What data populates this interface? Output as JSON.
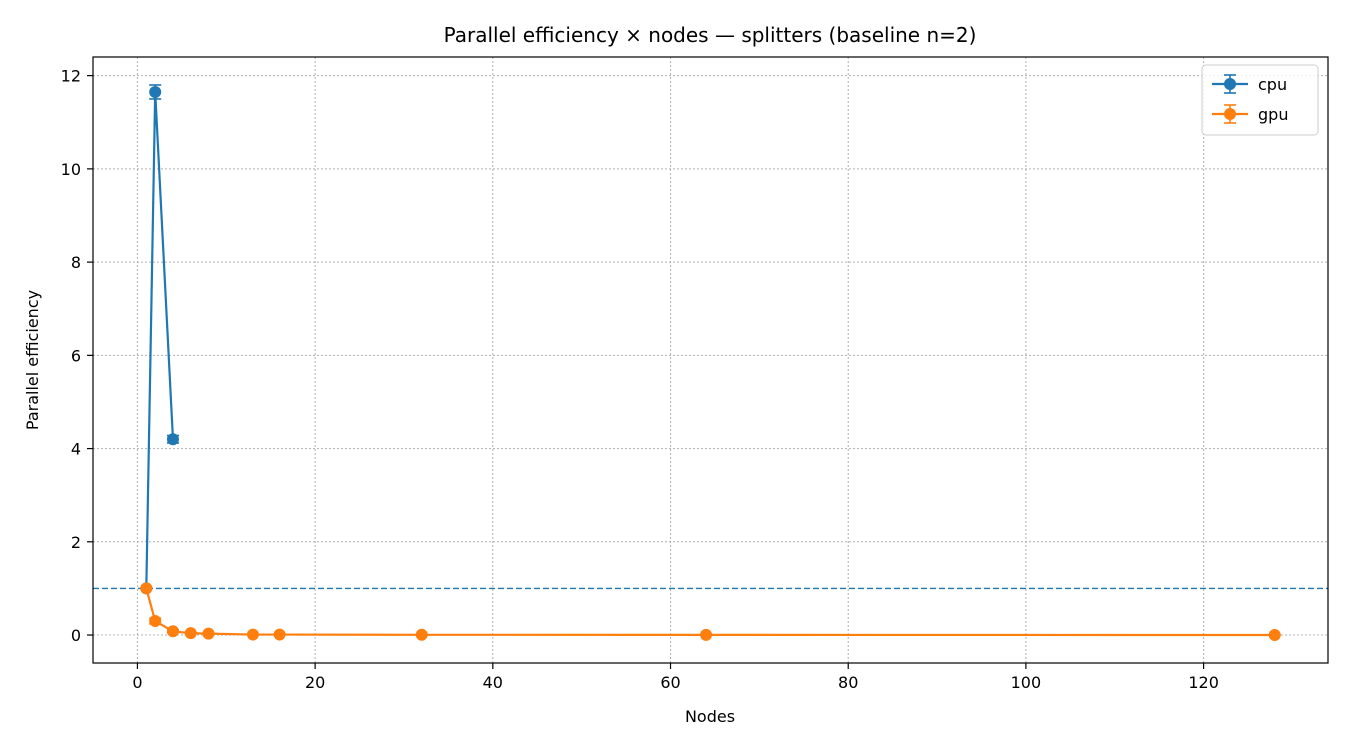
{
  "chart_data": {
    "type": "line",
    "title": "Parallel efficiency × nodes — splitters (baseline n=2)",
    "xlabel": "Nodes",
    "ylabel": "Parallel efficiency",
    "xlim": [
      -5,
      134
    ],
    "ylim": [
      -0.6,
      12.4
    ],
    "xticks": [
      0,
      20,
      40,
      60,
      80,
      100,
      120
    ],
    "yticks": [
      0,
      2,
      4,
      6,
      8,
      10,
      12
    ],
    "grid": true,
    "legend_position": "top-right",
    "reference_line": {
      "y": 1.0,
      "style": "dashed",
      "color": "#1f77b4"
    },
    "series": [
      {
        "name": "cpu",
        "color": "#1f77b4",
        "x": [
          1,
          2,
          4
        ],
        "y": [
          1.0,
          11.65,
          4.2
        ],
        "err": [
          0.0,
          0.15,
          0.08
        ]
      },
      {
        "name": "gpu",
        "color": "#ff7f0e",
        "x": [
          1,
          2,
          4,
          6,
          8,
          13,
          16,
          32,
          64,
          128
        ],
        "y": [
          1.0,
          0.3,
          0.08,
          0.04,
          0.03,
          0.01,
          0.01,
          0.005,
          0.003,
          0.001
        ],
        "err": [
          0.0,
          0.06,
          0.03,
          0.01,
          0.01,
          0.005,
          0.005,
          0.002,
          0.001,
          0.0005
        ]
      }
    ]
  }
}
